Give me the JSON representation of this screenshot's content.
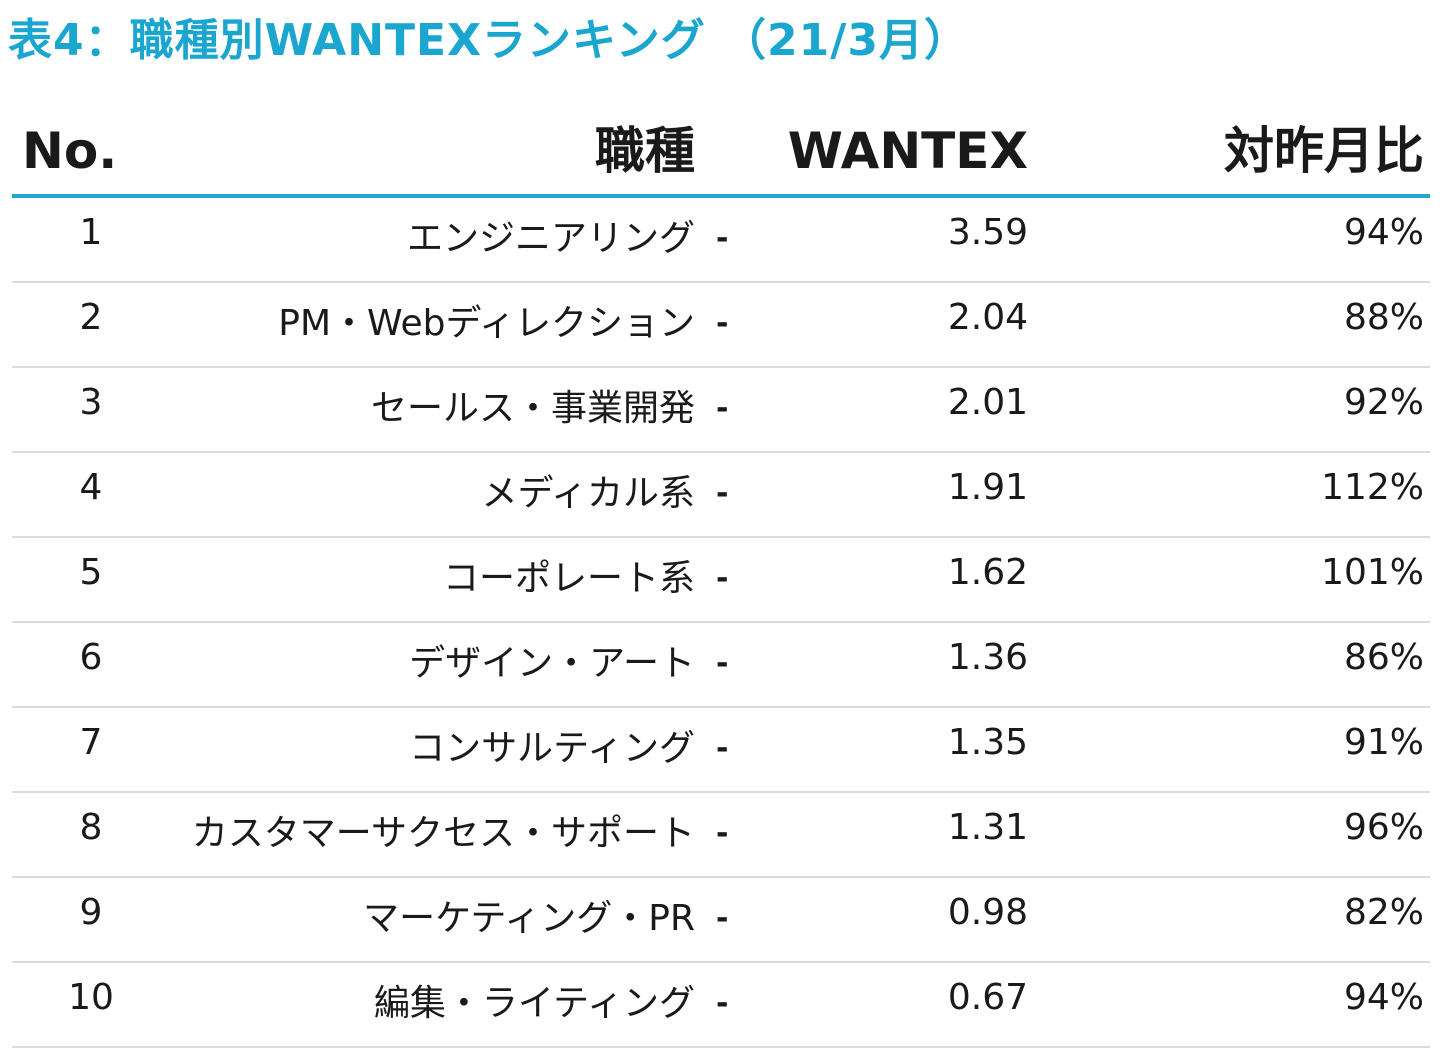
{
  "title": "表4：職種別WANTEXランキング （21/3月）",
  "table": {
    "headers": {
      "no": "No.",
      "job": "職種",
      "wantex": "WANTEX",
      "mom": "対昨月比"
    },
    "rows": [
      {
        "no": "1",
        "job": "エンジニアリング",
        "trend": "-",
        "wantex": "3.59",
        "mom": "94%"
      },
      {
        "no": "2",
        "job": "PM・Webディレクション",
        "trend": "-",
        "wantex": "2.04",
        "mom": "88%"
      },
      {
        "no": "3",
        "job": "セールス・事業開発",
        "trend": "-",
        "wantex": "2.01",
        "mom": "92%"
      },
      {
        "no": "4",
        "job": "メディカル系",
        "trend": "-",
        "wantex": "1.91",
        "mom": "112%"
      },
      {
        "no": "5",
        "job": "コーポレート系",
        "trend": "-",
        "wantex": "1.62",
        "mom": "101%"
      },
      {
        "no": "6",
        "job": "デザイン・アート",
        "trend": "-",
        "wantex": "1.36",
        "mom": "86%"
      },
      {
        "no": "7",
        "job": "コンサルティング",
        "trend": "-",
        "wantex": "1.35",
        "mom": "91%"
      },
      {
        "no": "8",
        "job": "カスタマーサクセス・サポート",
        "trend": "-",
        "wantex": "1.31",
        "mom": "96%"
      },
      {
        "no": "9",
        "job": "マーケティング・PR",
        "trend": "-",
        "wantex": "0.98",
        "mom": "82%"
      },
      {
        "no": "10",
        "job": "編集・ライティング",
        "trend": "-",
        "wantex": "0.67",
        "mom": "94%"
      }
    ]
  },
  "colors": {
    "accent": "#1aa6cf",
    "row_divider": "#dcdcdc",
    "text": "#1a1a1a"
  }
}
